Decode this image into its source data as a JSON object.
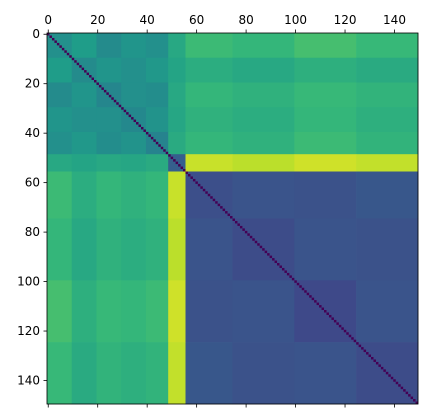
{
  "chart_data": {
    "type": "matshow",
    "colormap": "viridis",
    "clim": [
      0,
      1
    ],
    "xlim": [
      -0.5,
      149.5
    ],
    "ylim": [
      -0.5,
      149.5
    ],
    "xticks": [
      0,
      20,
      40,
      60,
      80,
      100,
      120,
      140
    ],
    "yticks": [
      0,
      20,
      40,
      60,
      80,
      100,
      120,
      140
    ],
    "edges": [
      0,
      10,
      20,
      30,
      40,
      49,
      56,
      75,
      100,
      125,
      150
    ],
    "matrix": [
      [
        0.5,
        0.55,
        0.48,
        0.52,
        0.5,
        0.6,
        0.68,
        0.66,
        0.7,
        0.67
      ],
      [
        0.55,
        0.48,
        0.52,
        0.5,
        0.53,
        0.58,
        0.62,
        0.6,
        0.63,
        0.61
      ],
      [
        0.48,
        0.52,
        0.46,
        0.5,
        0.49,
        0.6,
        0.66,
        0.64,
        0.67,
        0.65
      ],
      [
        0.52,
        0.5,
        0.5,
        0.47,
        0.51,
        0.59,
        0.64,
        0.62,
        0.66,
        0.63
      ],
      [
        0.5,
        0.53,
        0.49,
        0.51,
        0.45,
        0.61,
        0.66,
        0.64,
        0.68,
        0.65
      ],
      [
        0.6,
        0.58,
        0.6,
        0.59,
        0.61,
        0.3,
        0.92,
        0.9,
        0.93,
        0.91
      ],
      [
        0.68,
        0.62,
        0.66,
        0.64,
        0.66,
        0.92,
        0.24,
        0.26,
        0.25,
        0.27
      ],
      [
        0.66,
        0.6,
        0.64,
        0.62,
        0.64,
        0.9,
        0.26,
        0.23,
        0.26,
        0.25
      ],
      [
        0.7,
        0.63,
        0.67,
        0.66,
        0.68,
        0.93,
        0.25,
        0.26,
        0.22,
        0.26
      ],
      [
        0.67,
        0.61,
        0.65,
        0.63,
        0.65,
        0.91,
        0.27,
        0.25,
        0.26,
        0.23
      ]
    ],
    "diagonal": [
      0,
      0,
      0,
      0,
      0,
      0,
      0,
      0,
      0,
      0,
      0,
      0,
      0,
      0,
      0,
      0,
      0,
      0,
      0,
      0,
      0,
      0,
      0,
      0,
      0,
      0,
      0,
      0,
      0,
      0,
      0,
      0,
      0,
      0,
      0,
      0,
      0,
      0,
      0,
      0,
      0,
      0,
      0,
      0,
      0,
      0,
      0,
      0,
      0,
      0,
      0,
      0,
      0,
      0,
      0,
      0,
      0,
      0,
      0,
      0,
      0,
      0,
      0,
      0,
      0,
      0,
      0,
      0,
      0,
      0,
      0,
      0,
      0,
      0,
      0,
      0,
      0,
      0,
      0,
      0,
      0,
      0,
      0,
      0,
      0,
      0,
      0,
      0,
      0,
      0,
      0,
      0,
      0,
      0,
      0,
      0,
      0,
      0,
      0,
      0,
      0,
      0,
      0,
      0,
      0,
      0,
      0,
      0,
      0,
      0,
      0,
      0,
      0,
      0,
      0,
      0,
      0,
      0,
      0,
      0,
      0,
      0,
      0,
      0,
      0,
      0,
      0,
      0,
      0,
      0,
      0,
      0,
      0,
      0,
      0,
      0,
      0,
      0,
      0,
      0,
      0,
      0,
      0,
      0,
      0,
      0,
      0,
      0,
      0,
      0
    ]
  }
}
